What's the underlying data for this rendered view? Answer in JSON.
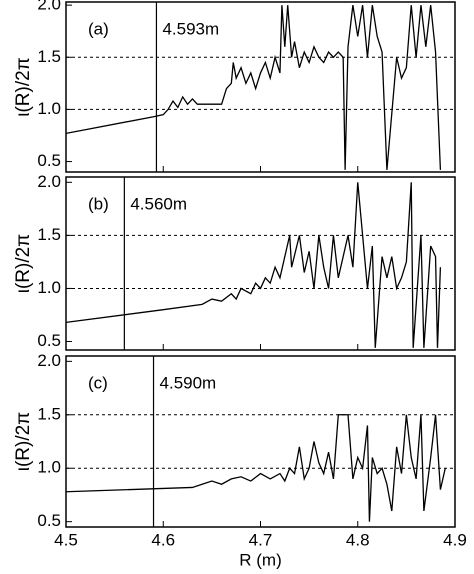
{
  "chart_data": [
    {
      "type": "line",
      "panel_label": "(a)",
      "annotation": "4.593m",
      "vline": 4.593,
      "ylabel": "ι(R)/2π",
      "xlim": [
        4.5,
        4.9
      ],
      "xticks": [
        4.5,
        4.6,
        4.7,
        4.8,
        4.9
      ],
      "ylim": [
        0.4,
        2.03
      ],
      "yticks": [
        0.5,
        {
          "value": 1,
          "label": "1.0"
        },
        1.5,
        {
          "value": 2,
          "label": "2.0"
        }
      ],
      "dashed_grid": [
        1,
        1.5
      ],
      "series": [
        {
          "color": "#000000",
          "x": [
            4.5,
            4.59,
            4.6,
            4.605,
            4.61,
            4.615,
            4.62,
            4.625,
            4.63,
            4.635,
            4.66,
            4.665,
            4.67,
            4.672,
            4.675,
            4.68,
            4.685,
            4.69,
            4.695,
            4.7,
            4.705,
            4.71,
            4.715,
            4.72,
            4.722,
            4.725,
            4.728,
            4.732,
            4.735,
            4.74,
            4.745,
            4.75,
            4.755,
            4.76,
            4.765,
            4.77,
            4.775,
            4.78,
            4.785,
            4.787,
            4.79,
            4.795,
            4.8,
            4.805,
            4.81,
            4.815,
            4.82,
            4.825,
            4.83,
            4.84,
            4.845,
            4.85,
            4.855,
            4.86,
            4.865,
            4.87,
            4.875,
            4.88,
            4.885
          ],
          "values": [
            0.77,
            0.93,
            0.95,
            1.0,
            1.08,
            1.02,
            1.12,
            1.05,
            1.1,
            1.05,
            1.05,
            1.2,
            1.25,
            1.45,
            1.3,
            1.4,
            1.25,
            1.35,
            1.2,
            1.35,
            1.45,
            1.3,
            1.5,
            1.35,
            2.0,
            1.6,
            2.0,
            1.5,
            1.65,
            1.4,
            1.55,
            1.45,
            1.6,
            1.5,
            1.45,
            1.55,
            1.5,
            1.55,
            1.5,
            0.42,
            1.6,
            2.0,
            1.7,
            2.0,
            1.5,
            2.0,
            1.7,
            1.55,
            0.42,
            1.5,
            1.3,
            1.4,
            2.0,
            1.5,
            2.0,
            1.6,
            2.0,
            1.55,
            0.42
          ]
        }
      ]
    },
    {
      "type": "line",
      "panel_label": "(b)",
      "annotation": "4.560m",
      "vline": 4.56,
      "ylabel": "ι(R)/2π",
      "xlim": [
        4.5,
        4.9
      ],
      "xticks": [
        4.5,
        4.6,
        4.7,
        4.8,
        4.9
      ],
      "ylim": [
        0.42,
        2.05
      ],
      "yticks": [
        0.5,
        {
          "value": 1,
          "label": "1.0"
        },
        1.5,
        {
          "value": 2,
          "label": "2.0"
        }
      ],
      "dashed_grid": [
        1,
        1.5
      ],
      "series": [
        {
          "color": "#000000",
          "x": [
            4.5,
            4.6,
            4.64,
            4.65,
            4.66,
            4.67,
            4.675,
            4.68,
            4.69,
            4.695,
            4.7,
            4.705,
            4.71,
            4.715,
            4.72,
            4.725,
            4.73,
            4.732,
            4.74,
            4.745,
            4.75,
            4.755,
            4.76,
            4.765,
            4.77,
            4.775,
            4.78,
            4.79,
            4.795,
            4.8,
            4.805,
            4.81,
            4.815,
            4.818,
            4.825,
            4.83,
            4.835,
            4.84,
            4.845,
            4.85,
            4.855,
            4.857,
            4.865,
            4.868,
            4.875,
            4.88,
            4.882,
            4.885
          ],
          "values": [
            0.68,
            0.8,
            0.85,
            0.9,
            0.88,
            0.95,
            0.9,
            1.0,
            0.95,
            1.05,
            1.0,
            1.1,
            1.05,
            1.2,
            1.1,
            1.3,
            1.5,
            1.2,
            1.5,
            1.15,
            1.35,
            1.0,
            1.5,
            1.2,
            1.0,
            1.5,
            1.1,
            1.5,
            1.2,
            2.0,
            1.5,
            1.0,
            1.4,
            0.44,
            1.3,
            1.1,
            1.3,
            1.0,
            1.1,
            1.25,
            2.0,
            0.44,
            1.5,
            0.44,
            1.4,
            1.3,
            0.44,
            1.2
          ]
        }
      ]
    },
    {
      "type": "line",
      "panel_label": "(c)",
      "annotation": "4.590m",
      "vline": 4.59,
      "ylabel": "ι(R)/2π",
      "xlabel": "R (m)",
      "xlim": [
        4.5,
        4.9
      ],
      "xticks": [
        4.5,
        4.6,
        4.7,
        4.8,
        4.9
      ],
      "ylim": [
        0.45,
        2.05
      ],
      "yticks": [
        0.5,
        {
          "value": 1,
          "label": "1.0"
        },
        1.5,
        {
          "value": 2,
          "label": "2.0"
        }
      ],
      "dashed_grid": [
        1,
        1.5
      ],
      "series": [
        {
          "color": "#000000",
          "x": [
            4.5,
            4.63,
            4.64,
            4.65,
            4.66,
            4.67,
            4.68,
            4.69,
            4.7,
            4.71,
            4.72,
            4.725,
            4.73,
            4.735,
            4.74,
            4.745,
            4.75,
            4.755,
            4.76,
            4.765,
            4.77,
            4.775,
            4.78,
            4.79,
            4.795,
            4.8,
            4.805,
            4.81,
            4.812,
            4.815,
            4.82,
            4.825,
            4.83,
            4.835,
            4.84,
            4.845,
            4.85,
            4.855,
            4.86,
            4.865,
            4.868,
            4.875,
            4.88,
            4.885,
            4.89
          ],
          "values": [
            0.78,
            0.82,
            0.85,
            0.88,
            0.85,
            0.9,
            0.92,
            0.88,
            0.95,
            0.9,
            0.95,
            0.88,
            1.0,
            0.95,
            1.2,
            0.9,
            1.0,
            1.25,
            1.05,
            0.95,
            1.15,
            0.9,
            1.5,
            1.5,
            0.9,
            1.1,
            1.0,
            1.4,
            0.5,
            1.1,
            0.95,
            1.0,
            0.85,
            0.6,
            1.2,
            0.95,
            1.5,
            1.1,
            0.9,
            1.5,
            0.6,
            1.1,
            1.5,
            0.8,
            1.0
          ]
        }
      ]
    }
  ]
}
